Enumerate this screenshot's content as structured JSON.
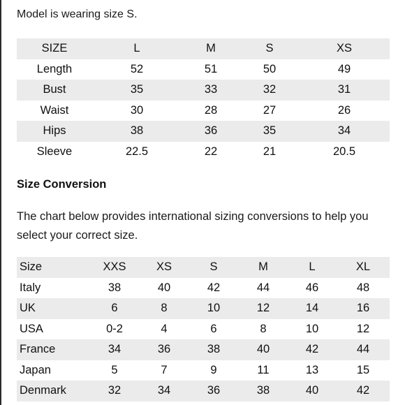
{
  "intro_text": "Model is wearing size S.",
  "size_table": {
    "header": [
      "SIZE",
      "L",
      "M",
      "S",
      "XS"
    ],
    "rows": [
      [
        "Length",
        "52",
        "51",
        "50",
        "49"
      ],
      [
        "Bust",
        "35",
        "33",
        "32",
        "31"
      ],
      [
        "Waist",
        "30",
        "28",
        "27",
        "26"
      ],
      [
        "Hips",
        "38",
        "36",
        "35",
        "34"
      ],
      [
        "Sleeve",
        "22.5",
        "22",
        "21",
        "20.5"
      ]
    ]
  },
  "conversion": {
    "title": "Size Conversion",
    "description": "The chart below provides international sizing conversions to help you select your correct size.",
    "header": [
      "Size",
      "XXS",
      "XS",
      "S",
      "M",
      "L",
      "XL"
    ],
    "rows": [
      [
        "Italy",
        "38",
        "40",
        "42",
        "44",
        "46",
        "48"
      ],
      [
        "UK",
        "6",
        "8",
        "10",
        "12",
        "14",
        "16"
      ],
      [
        "USA",
        "0-2",
        "4",
        "6",
        "8",
        "10",
        "12"
      ],
      [
        "France",
        "34",
        "36",
        "38",
        "40",
        "42",
        "44"
      ],
      [
        "Japan",
        "5",
        "7",
        "9",
        "11",
        "13",
        "15"
      ],
      [
        "Denmark",
        "32",
        "34",
        "36",
        "38",
        "40",
        "42"
      ]
    ]
  },
  "colors": {
    "stripe": "#ebebeb",
    "text": "#111111",
    "left_rule": "#2b2b2b"
  }
}
